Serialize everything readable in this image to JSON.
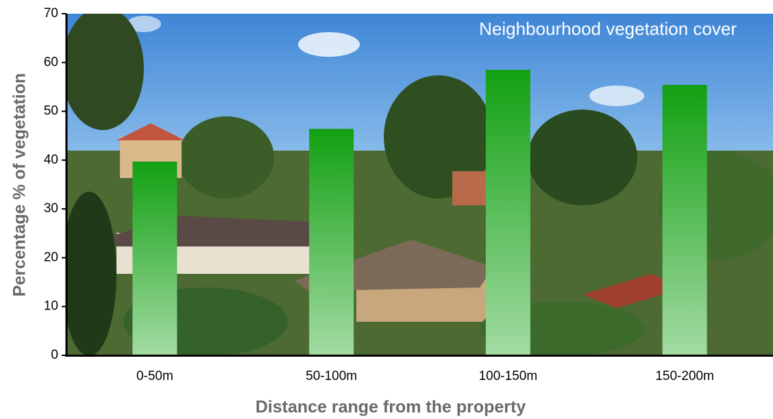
{
  "chart_data": {
    "type": "bar",
    "title": "Neighbourhood vegetation cover",
    "x_label": "Distance range from the property",
    "y_label": "Percentage % of vegetation",
    "categories": [
      "0-50m",
      "50-100m",
      "100-150m",
      "150-200m"
    ],
    "values": [
      39.7,
      46.4,
      58.5,
      55.4
    ],
    "color": "#12a012",
    "ylim": [
      0,
      70
    ],
    "yticks": [
      0,
      10,
      20,
      30,
      40,
      50,
      60,
      70
    ]
  }
}
